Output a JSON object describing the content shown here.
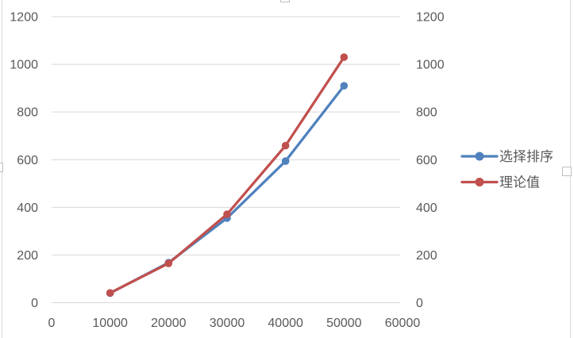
{
  "chart_data": {
    "type": "line",
    "x": [
      10000,
      20000,
      30000,
      40000,
      50000
    ],
    "series": [
      {
        "name": "选择排序",
        "color": "#4F81BD",
        "values": [
          40,
          168,
          355,
          594,
          910
        ]
      },
      {
        "name": "理论值",
        "color": "#C0504D",
        "values": [
          41,
          165,
          371,
          659,
          1030
        ]
      }
    ],
    "title": "",
    "xlabel": "",
    "ylabel": "",
    "xlim": [
      0,
      60000
    ],
    "ylim": [
      0,
      1200
    ],
    "x_ticks": [
      0,
      10000,
      20000,
      30000,
      40000,
      50000,
      60000
    ],
    "y_ticks_left": [
      0,
      200,
      400,
      600,
      800,
      1000,
      1200
    ],
    "y_ticks_right": [
      0,
      200,
      400,
      600,
      800,
      1000,
      1200
    ],
    "grid": true,
    "legend_position": "right-middle",
    "markers": "circle"
  },
  "colors": {
    "series1": "#4F81BD",
    "series2": "#C0504D",
    "gridline": "#D9D9D9",
    "axis_text": "#595959",
    "chart_border": "#D9D9D9",
    "handle_border": "#BFBFBF",
    "background": "#FFFFFF"
  },
  "legend": {
    "items": [
      {
        "label": "选择排序",
        "color": "#4F81BD"
      },
      {
        "label": "理论值",
        "color": "#C0504D"
      }
    ]
  }
}
